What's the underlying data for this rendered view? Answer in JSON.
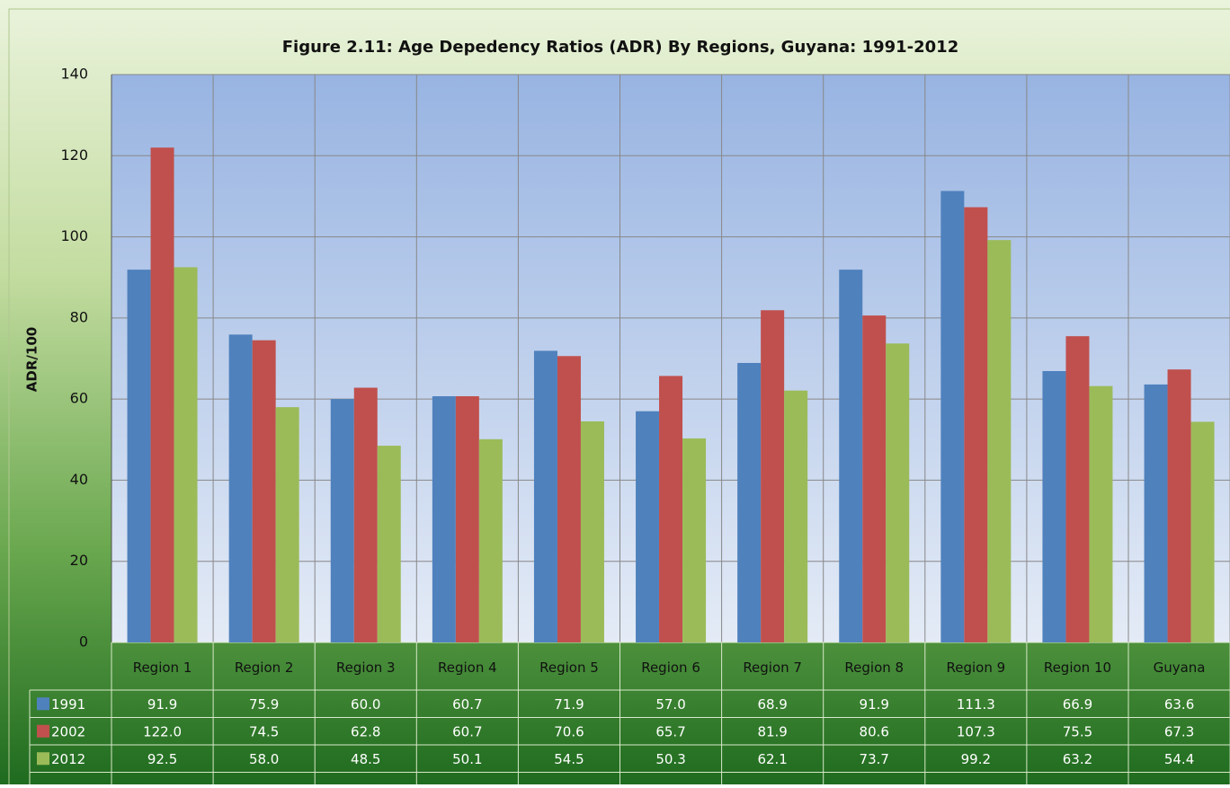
{
  "chart_data": {
    "type": "bar",
    "title": "Figure 2.11: Age Depedency Ratios (ADR) By Regions, Guyana: 1991-2012",
    "y_label": "ADR/100",
    "categories": [
      "Region 1",
      "Region 2",
      "Region 3",
      "Region 4",
      "Region 5",
      "Region 6",
      "Region 7",
      "Region 8",
      "Region 9",
      "Region 10",
      "Guyana"
    ],
    "series": [
      {
        "name": "1991",
        "color": "#4f81bd",
        "values": [
          91.9,
          75.9,
          60.0,
          60.7,
          71.9,
          57.0,
          68.9,
          91.9,
          111.3,
          66.9,
          63.6
        ],
        "value_labels": [
          "91.9",
          "75.9",
          "60.0",
          "60.7",
          "71.9",
          "57.0",
          "68.9",
          "91.9",
          "111.3",
          "66.9",
          "63.6"
        ]
      },
      {
        "name": "2002",
        "color": "#c0504d",
        "values": [
          122.0,
          74.5,
          62.8,
          60.7,
          70.6,
          65.7,
          81.9,
          80.6,
          107.3,
          75.5,
          67.3
        ],
        "value_labels": [
          "122.0",
          "74.5",
          "62.8",
          "60.7",
          "70.6",
          "65.7",
          "81.9",
          "80.6",
          "107.3",
          "75.5",
          "67.3"
        ]
      },
      {
        "name": "2012",
        "color": "#9bbb59",
        "values": [
          92.5,
          58.0,
          48.5,
          50.1,
          54.5,
          50.3,
          62.1,
          73.7,
          99.2,
          63.2,
          54.4
        ],
        "value_labels": [
          "92.5",
          "58.0",
          "48.5",
          "50.1",
          "54.5",
          "50.3",
          "62.1",
          "73.7",
          "99.2",
          "63.2",
          "54.4"
        ]
      }
    ],
    "ylim": [
      0,
      140
    ],
    "yticks": [
      0,
      20,
      40,
      60,
      80,
      100,
      120,
      140
    ],
    "grid": true
  }
}
